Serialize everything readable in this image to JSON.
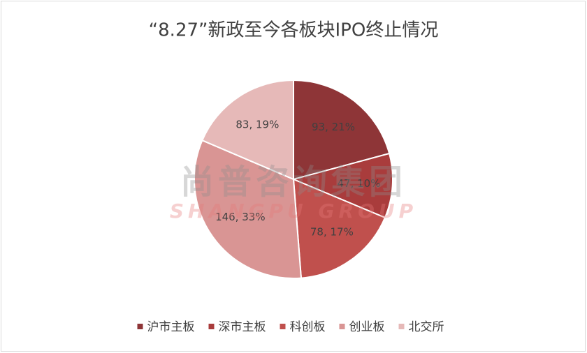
{
  "chart_data": {
    "type": "pie",
    "title": "“8.27”新政至今各板块IPO终止情况",
    "categories": [
      "沪市主板",
      "深市主板",
      "科创板",
      "创业板",
      "北交所"
    ],
    "values": [
      93,
      47,
      78,
      146,
      83
    ],
    "value_labels": [
      "93, 21%",
      "47, 10%",
      "78, 17%",
      "146, 33%",
      "83, 19%"
    ],
    "colors": [
      "#8e3537",
      "#a93c3c",
      "#c0504d",
      "#d99594",
      "#e6b9b8"
    ],
    "watermark": [
      "尚普咨询集团",
      "SHANGPU GROUP"
    ],
    "legend": "bottom"
  }
}
